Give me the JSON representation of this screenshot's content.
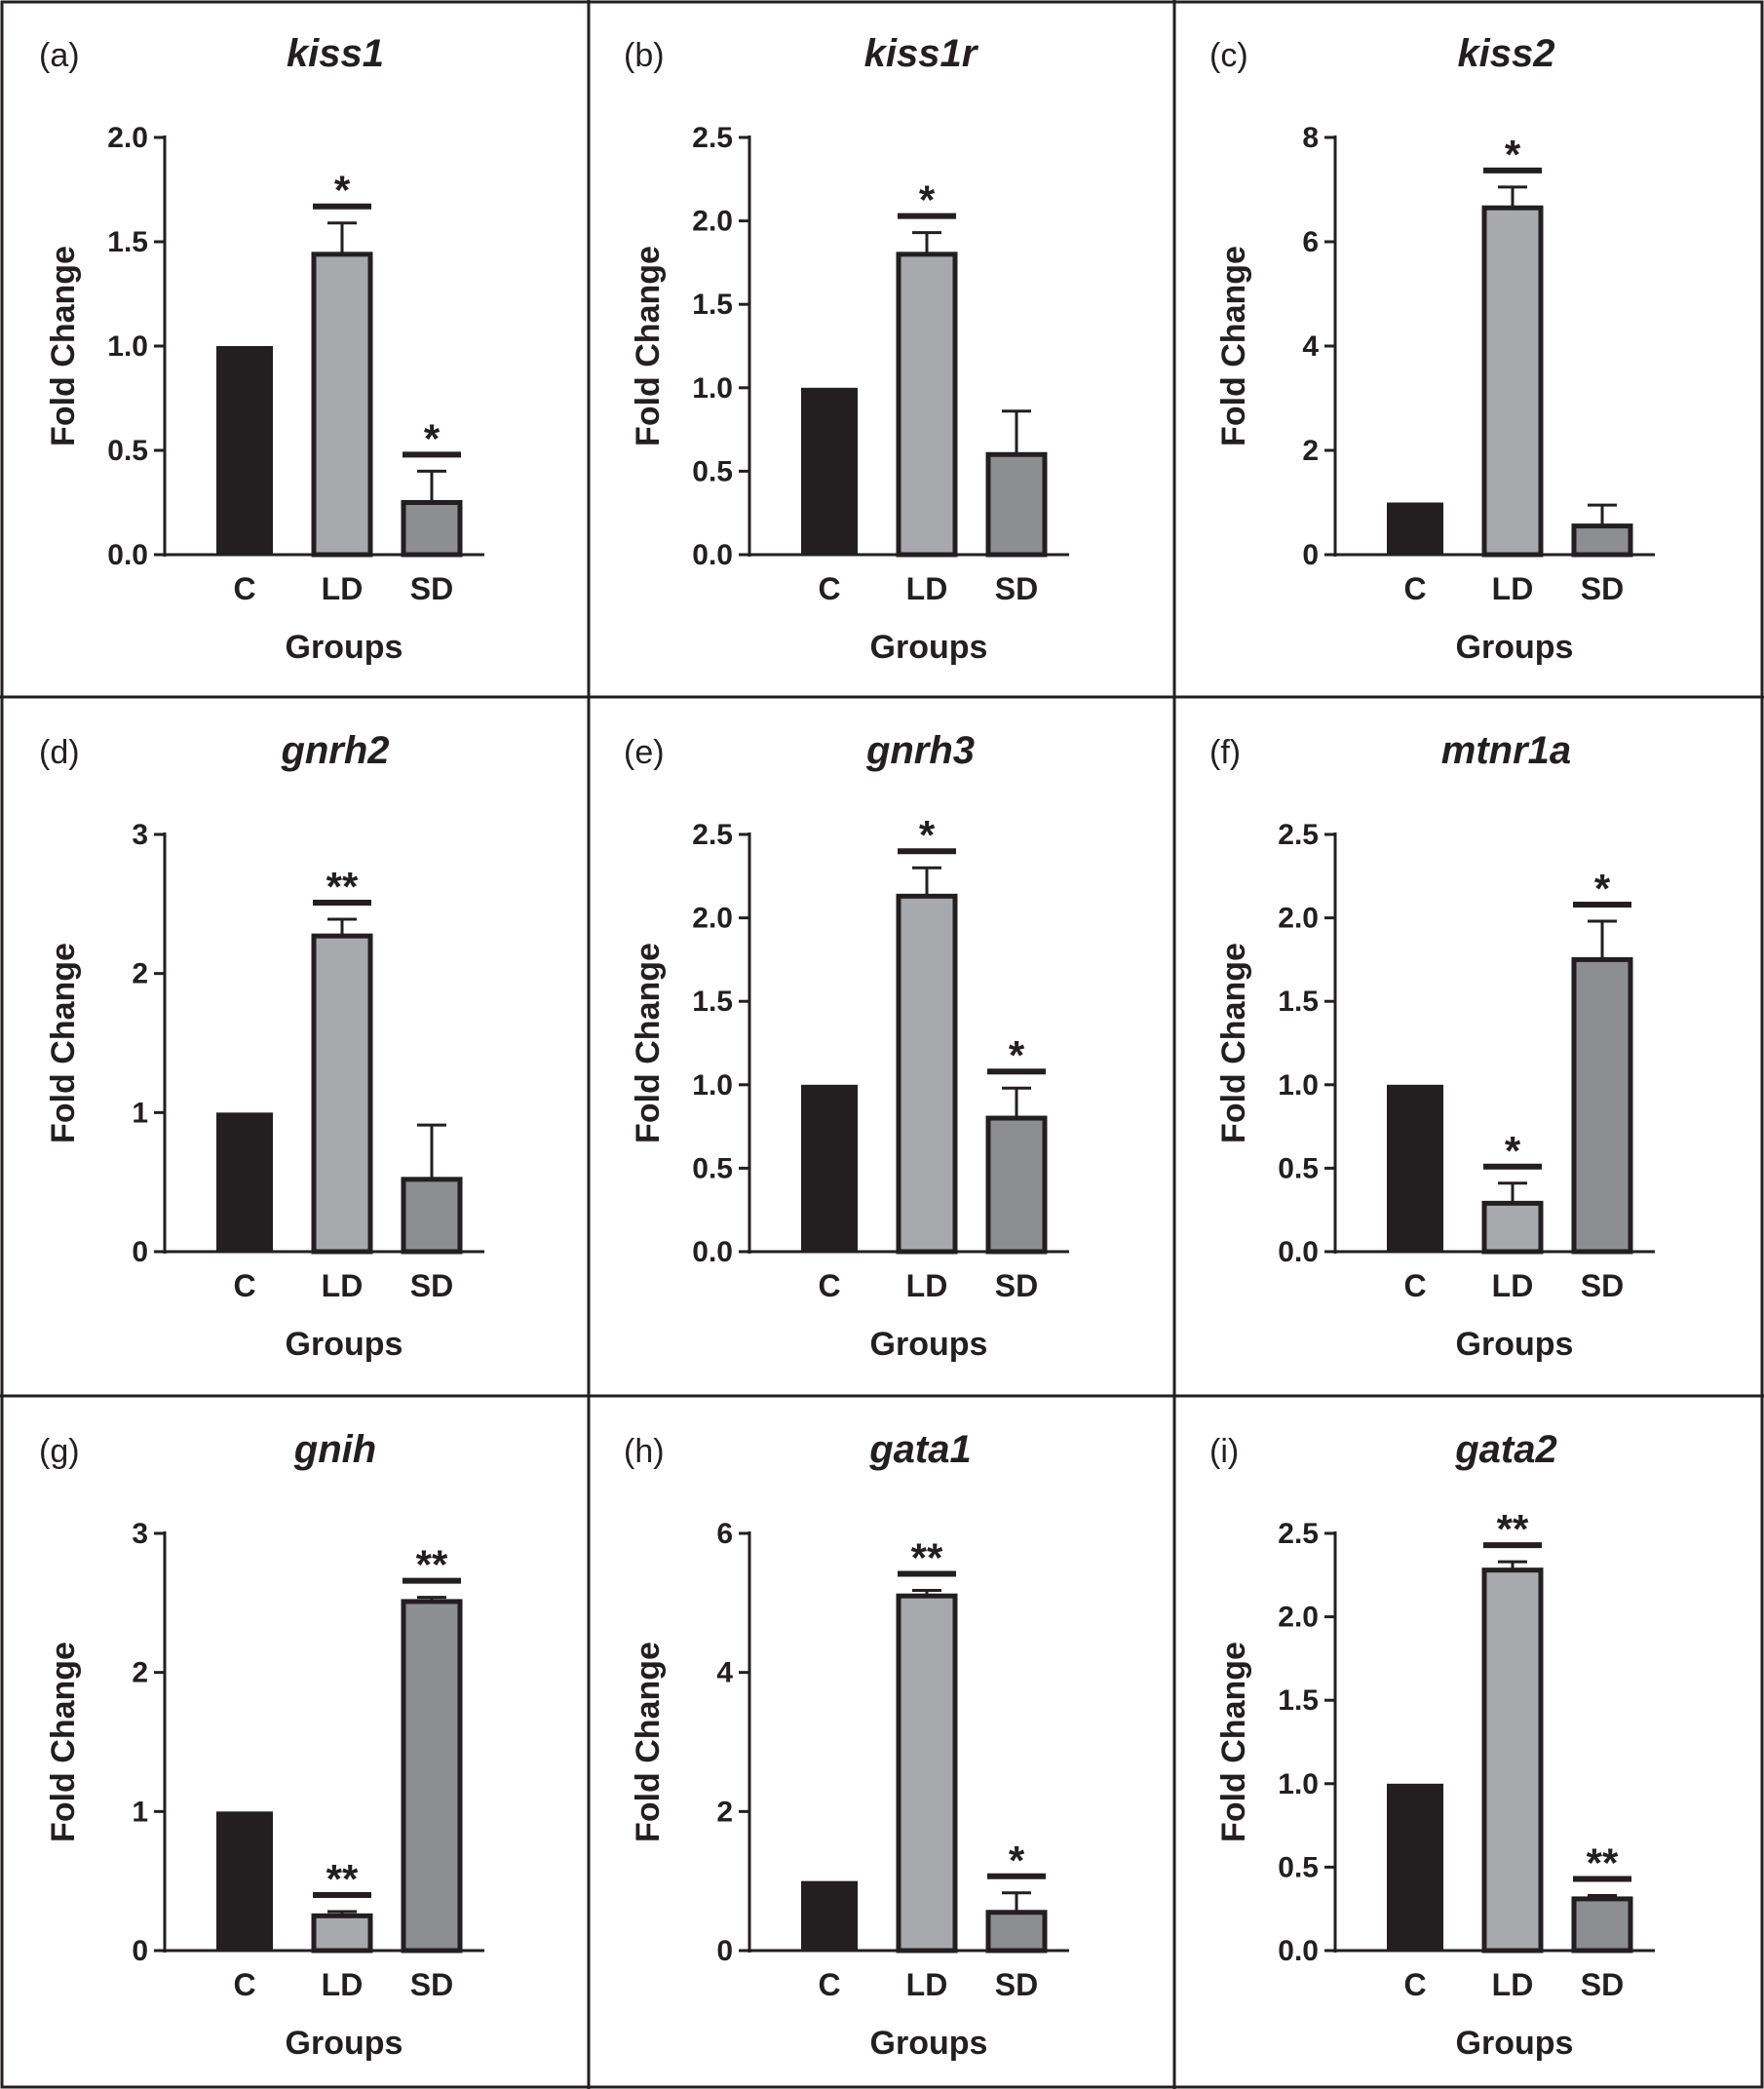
{
  "figure": {
    "background": "#ffffff",
    "frame_color": "#231f20",
    "bar_colors": {
      "C": "#231f20",
      "LD": "#a7a9ac",
      "SD": "#8c8e90"
    },
    "bar_edge_color": "#231f20"
  },
  "chart_data": [
    {
      "panel": "(a)",
      "title": "kiss1",
      "type": "bar",
      "categories": [
        "C",
        "LD",
        "SD"
      ],
      "values": [
        1.0,
        1.44,
        0.25
      ],
      "errors": [
        0,
        0.15,
        0.15
      ],
      "significance": [
        "",
        "*",
        "*"
      ],
      "ylim": [
        0,
        2.0
      ],
      "yticks": [
        "0.0",
        "0.5",
        "1.0",
        "1.5",
        "2.0"
      ],
      "xlabel": "Groups",
      "ylabel": "Fold Change"
    },
    {
      "panel": "(b)",
      "title": "kiss1r",
      "type": "bar",
      "categories": [
        "C",
        "LD",
        "SD"
      ],
      "values": [
        1.0,
        1.8,
        0.6
      ],
      "errors": [
        0,
        0.13,
        0.26
      ],
      "significance": [
        "",
        "*",
        ""
      ],
      "ylim": [
        0,
        2.5
      ],
      "yticks": [
        "0.0",
        "0.5",
        "1.0",
        "1.5",
        "2.0",
        "2.5"
      ],
      "xlabel": "Groups",
      "ylabel": "Fold Change"
    },
    {
      "panel": "(c)",
      "title": "kiss2",
      "type": "bar",
      "categories": [
        "C",
        "LD",
        "SD"
      ],
      "values": [
        1.0,
        6.65,
        0.55
      ],
      "errors": [
        0,
        0.4,
        0.4
      ],
      "significance": [
        "",
        "*",
        ""
      ],
      "ylim": [
        0,
        8
      ],
      "yticks": [
        "0",
        "2",
        "4",
        "6",
        "8"
      ],
      "xlabel": "Groups",
      "ylabel": "Fold Change"
    },
    {
      "panel": "(d)",
      "title": "gnrh2",
      "type": "bar",
      "categories": [
        "C",
        "LD",
        "SD"
      ],
      "values": [
        1.0,
        2.27,
        0.52
      ],
      "errors": [
        0,
        0.12,
        0.39
      ],
      "significance": [
        "",
        "**",
        ""
      ],
      "ylim": [
        0,
        3
      ],
      "yticks": [
        "0",
        "1",
        "2",
        "3"
      ],
      "xlabel": "Groups",
      "ylabel": "Fold Change"
    },
    {
      "panel": "(e)",
      "title": "gnrh3",
      "type": "bar",
      "categories": [
        "C",
        "LD",
        "SD"
      ],
      "values": [
        1.0,
        2.13,
        0.8
      ],
      "errors": [
        0,
        0.17,
        0.18
      ],
      "significance": [
        "",
        "*",
        "*"
      ],
      "ylim": [
        0,
        2.5
      ],
      "yticks": [
        "0.0",
        "0.5",
        "1.0",
        "1.5",
        "2.0",
        "2.5"
      ],
      "xlabel": "Groups",
      "ylabel": "Fold Change"
    },
    {
      "panel": "(f)",
      "title": "mtnr1a",
      "type": "bar",
      "categories": [
        "C",
        "LD",
        "SD"
      ],
      "values": [
        1.0,
        0.29,
        1.75
      ],
      "errors": [
        0,
        0.12,
        0.23
      ],
      "significance": [
        "",
        "*",
        "*"
      ],
      "ylim": [
        0,
        2.5
      ],
      "yticks": [
        "0.0",
        "0.5",
        "1.0",
        "1.5",
        "2.0",
        "2.5"
      ],
      "xlabel": "Groups",
      "ylabel": "Fold Change"
    },
    {
      "panel": "(g)",
      "title": "gnih",
      "type": "bar",
      "categories": [
        "C",
        "LD",
        "SD"
      ],
      "values": [
        1.0,
        0.25,
        2.51
      ],
      "errors": [
        0,
        0.03,
        0.03
      ],
      "significance": [
        "",
        "**",
        "**"
      ],
      "ylim": [
        0,
        3
      ],
      "yticks": [
        "0",
        "1",
        "2",
        "3"
      ],
      "xlabel": "Groups",
      "ylabel": "Fold Change"
    },
    {
      "panel": "(h)",
      "title": "gata1",
      "type": "bar",
      "categories": [
        "C",
        "LD",
        "SD"
      ],
      "values": [
        1.0,
        5.1,
        0.55
      ],
      "errors": [
        0,
        0.08,
        0.28
      ],
      "significance": [
        "",
        "**",
        "*"
      ],
      "ylim": [
        0,
        6
      ],
      "yticks": [
        "0",
        "2",
        "4",
        "6"
      ],
      "xlabel": "Groups",
      "ylabel": "Fold Change"
    },
    {
      "panel": "(i)",
      "title": "gata2",
      "type": "bar",
      "categories": [
        "C",
        "LD",
        "SD"
      ],
      "values": [
        1.0,
        2.28,
        0.31
      ],
      "errors": [
        0,
        0.05,
        0.02
      ],
      "significance": [
        "",
        "**",
        "**"
      ],
      "ylim": [
        0,
        2.5
      ],
      "yticks": [
        "0.0",
        "0.5",
        "1.0",
        "1.5",
        "2.0",
        "2.5"
      ],
      "xlabel": "Groups",
      "ylabel": "Fold Change"
    }
  ]
}
